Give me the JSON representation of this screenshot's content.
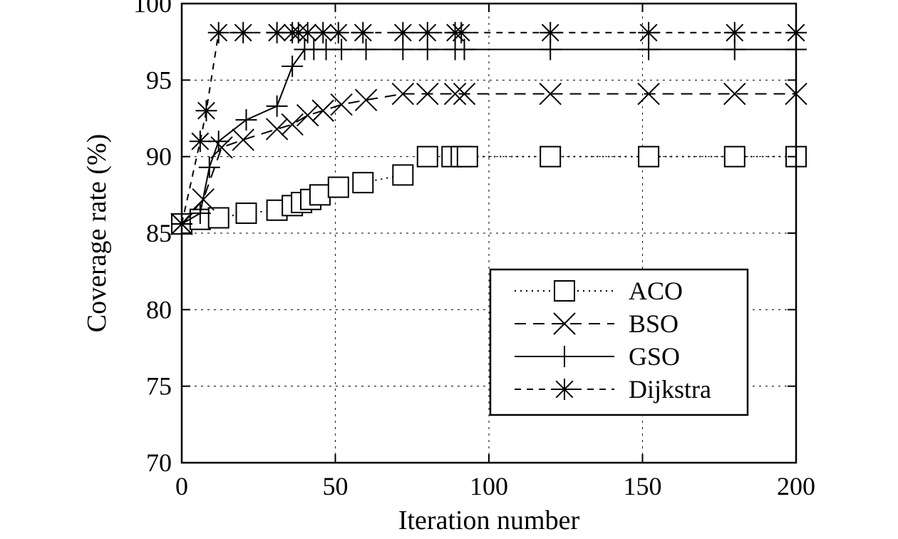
{
  "chart_data": {
    "type": "line",
    "xlabel": "Iteration number",
    "ylabel": "Coverage rate (%)",
    "xlim": [
      0,
      200
    ],
    "ylim": [
      70,
      100
    ],
    "xticks": [
      0,
      50,
      100,
      150,
      200
    ],
    "yticks": [
      70,
      75,
      80,
      85,
      90,
      95,
      100
    ],
    "grid": true,
    "legend_position": "bottom-right",
    "series": [
      {
        "name": "ACO",
        "line_style": "dotted",
        "marker": "square",
        "x": [
          0,
          6,
          12,
          21,
          31,
          36,
          39,
          42,
          45,
          51,
          59,
          72,
          80,
          88,
          91,
          93,
          120,
          152,
          180,
          200
        ],
        "y": [
          85.6,
          85.9,
          86.0,
          86.3,
          86.5,
          86.8,
          87.0,
          87.2,
          87.5,
          88.0,
          88.3,
          88.8,
          90.0,
          90.0,
          90.0,
          90.0,
          90.0,
          90.0,
          90.0,
          90.0
        ]
      },
      {
        "name": "BSO",
        "line_style": "dashed",
        "marker": "x",
        "x": [
          0,
          7,
          13,
          20,
          31,
          36,
          41,
          46,
          52,
          60,
          72,
          80,
          89,
          92,
          120,
          152,
          180,
          200
        ],
        "y": [
          85.6,
          87.2,
          90.6,
          91.1,
          91.8,
          92.1,
          92.7,
          93.0,
          93.4,
          93.7,
          94.1,
          94.1,
          94.1,
          94.1,
          94.1,
          94.1,
          94.1,
          94.1
        ]
      },
      {
        "name": "GSO",
        "line_style": "solid",
        "marker": "plus",
        "x": [
          0,
          6,
          9,
          12,
          21,
          31,
          36,
          40,
          43,
          47,
          52,
          60,
          72,
          80,
          89,
          92,
          120,
          152,
          180,
          200
        ],
        "y": [
          85.6,
          86.3,
          89.3,
          91.0,
          92.4,
          93.3,
          95.9,
          97.0,
          97.0,
          97.0,
          97.0,
          97.0,
          97.0,
          97.0,
          97.0,
          97.0,
          97.0,
          97.0,
          97.0,
          97.0
        ]
      },
      {
        "name": "Dijkstra",
        "line_style": "short-dashed",
        "marker": "asterisk",
        "x": [
          0,
          6,
          8,
          12,
          20,
          31,
          36,
          38,
          41,
          46,
          51,
          59,
          72,
          80,
          89,
          91,
          120,
          152,
          180,
          200
        ],
        "y": [
          85.6,
          91.0,
          93.0,
          98.1,
          98.1,
          98.1,
          98.1,
          98.1,
          98.1,
          98.1,
          98.1,
          98.1,
          98.1,
          98.1,
          98.1,
          98.1,
          98.1,
          98.1,
          98.1,
          98.1
        ]
      }
    ]
  }
}
